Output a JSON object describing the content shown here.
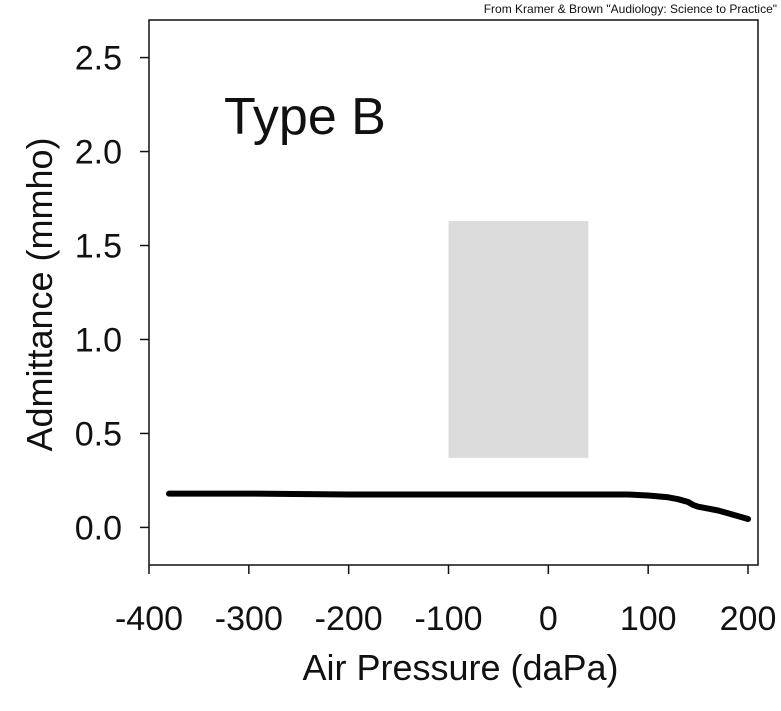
{
  "credit": "From Kramer & Brown \"Audiology: Science to Practice\"",
  "chart_data": {
    "type": "line",
    "annotation": "Type B",
    "xlabel": "Air Pressure (daPa)",
    "ylabel": "Admittance (mmho)",
    "xlim": [
      -400,
      210
    ],
    "ylim": [
      -0.2,
      2.7
    ],
    "x_ticks": [
      -400,
      -300,
      -200,
      -100,
      0,
      100,
      200
    ],
    "x_tick_labels": [
      "-400",
      "-300",
      "-200",
      "-100",
      "0",
      "100",
      "200"
    ],
    "y_ticks": [
      0.0,
      0.5,
      1.0,
      1.5,
      2.0,
      2.5
    ],
    "y_tick_labels": [
      "0.0",
      "0.5",
      "1.0",
      "1.5",
      "2.0",
      "2.5"
    ],
    "grid": false,
    "series": [
      {
        "color": "#000000",
        "x": [
          -380,
          -300,
          -200,
          -100,
          0,
          50,
          80,
          100,
          120,
          130,
          140,
          145,
          150,
          160,
          170,
          180,
          190,
          200
        ],
        "y": [
          0.18,
          0.18,
          0.175,
          0.175,
          0.175,
          0.175,
          0.175,
          0.17,
          0.16,
          0.15,
          0.135,
          0.12,
          0.11,
          0.1,
          0.09,
          0.075,
          0.06,
          0.045
        ]
      }
    ],
    "shaded_region": {
      "x": [
        -100,
        40
      ],
      "y": [
        0.37,
        1.63
      ],
      "color": "#dcdcdc"
    }
  }
}
